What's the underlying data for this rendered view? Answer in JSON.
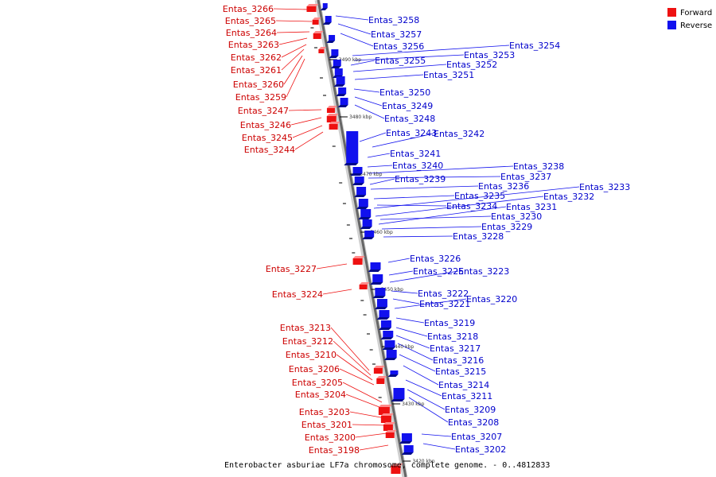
{
  "colors": {
    "forward": "#ee1111",
    "reverse": "#1111ee",
    "backbone": "#888888"
  },
  "legend": {
    "forward": "Forward",
    "reverse": "Reverse"
  },
  "caption": "Enterobacter asburiae LF7a chromosome, complete genome. - 0..4812833",
  "ticks": [
    "3490 kbp",
    "3480 kbp",
    "3470 kbp",
    "3460 kbp",
    "3450 kbp",
    "3440 kbp",
    "3430 kbp",
    "3420 kbp"
  ],
  "forward_labels": [
    "Entas_3266",
    "Entas_3265",
    "Entas_3264",
    "Entas_3263",
    "Entas_3262",
    "Entas_3261",
    "Entas_3260",
    "Entas_3259",
    "Entas_3247",
    "Entas_3246",
    "Entas_3245",
    "Entas_3244",
    "Entas_3227",
    "Entas_3224",
    "Entas_3213",
    "Entas_3212",
    "Entas_3210",
    "Entas_3206",
    "Entas_3205",
    "Entas_3204",
    "Entas_3203",
    "Entas_3201",
    "Entas_3200",
    "Entas_3198"
  ],
  "reverse_labels": [
    "Entas_3258",
    "Entas_3257",
    "Entas_3256",
    "Entas_3254",
    "Entas_3253",
    "Entas_3255",
    "Entas_3252",
    "Entas_3251",
    "Entas_3250",
    "Entas_3249",
    "Entas_3248",
    "Entas_3243",
    "Entas_3242",
    "Entas_3241",
    "Entas_3240",
    "Entas_3238",
    "Entas_3237",
    "Entas_3239",
    "Entas_3236",
    "Entas_3233",
    "Entas_3235",
    "Entas_3232",
    "Entas_3234",
    "Entas_3231",
    "Entas_3230",
    "Entas_3229",
    "Entas_3228",
    "Entas_3226",
    "Entas_3225",
    "Entas_3223",
    "Entas_3222",
    "Entas_3221",
    "Entas_3220",
    "Entas_3219",
    "Entas_3218",
    "Entas_3217",
    "Entas_3216",
    "Entas_3215",
    "Entas_3214",
    "Entas_3211",
    "Entas_3209",
    "Entas_3208",
    "Entas_3207",
    "Entas_3202"
  ]
}
